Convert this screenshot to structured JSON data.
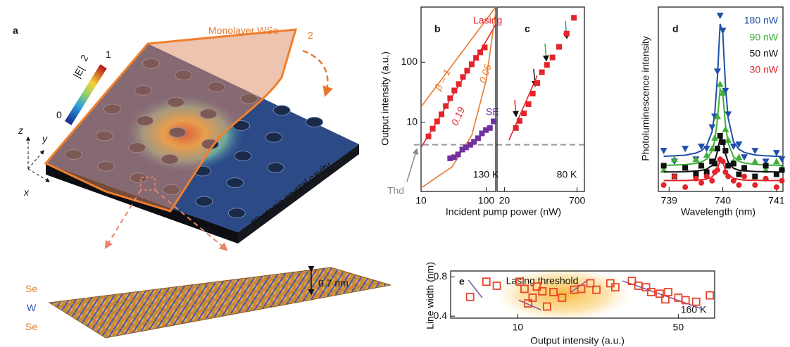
{
  "illustration": {
    "panel": "a",
    "layer_label": "Monolayer WSe",
    "layer_label_sub": "2",
    "colorbar": {
      "label": "|E|",
      "label_sup": "2",
      "ticks": [
        0,
        1
      ]
    },
    "axes": [
      "z",
      "y",
      "x"
    ],
    "cavity_label": "Photonic crystal cavity",
    "atoms": [
      "Se",
      "W",
      "Se"
    ],
    "thickness": "0.7 nm"
  },
  "chart_data": [
    {
      "type": "scatter",
      "panel": "b",
      "xlabel": "Incident pump power (nW)",
      "ylabel": "Output intensity (a.u.)",
      "xscale": "log",
      "yscale": "log",
      "xlim": [
        10,
        140
      ],
      "ylim": [
        0.7,
        830
      ],
      "xticks": [
        10,
        100
      ],
      "yticks": [
        10,
        100
      ],
      "temperature": "130 K",
      "series": [
        {
          "name": "Lasing",
          "color": "#e3242b",
          "marker": "square",
          "x": [
            13,
            15.1,
            17.6,
            20.6,
            24,
            28,
            32.5,
            38,
            44,
            51,
            60,
            70,
            81,
            95
          ],
          "values": [
            5.8,
            7.8,
            10.3,
            13.5,
            18.6,
            25.1,
            33.8,
            43.2,
            56.6,
            72.2,
            92.2,
            118,
            146,
            176
          ]
        },
        {
          "name": "SE",
          "color": "#7030a0",
          "marker": "square",
          "x": [
            28,
            32,
            37,
            43,
            49,
            57,
            65,
            75,
            86,
            99,
            114,
            130
          ],
          "values": [
            2.5,
            2.6,
            2.9,
            3.5,
            3.8,
            4.2,
            4.7,
            5.4,
            6.5,
            7.4,
            8.0,
            10.3
          ]
        }
      ],
      "fits": [
        {
          "label": "β = 1",
          "color": "#e8772e",
          "x": [
            10,
            140
          ],
          "values": [
            18,
            830
          ]
        },
        {
          "label": "0.19",
          "color": "#e3242b",
          "x": [
            10,
            20,
            40,
            80,
            140
          ],
          "values": [
            3.8,
            13,
            45,
            150,
            420
          ]
        },
        {
          "label": "0.05",
          "color": "#e8772e",
          "x": [
            10,
            30,
            60,
            100,
            140
          ],
          "values": [
            0.8,
            1.8,
            6,
            50,
            700
          ]
        }
      ],
      "threshold": {
        "label": "Thd",
        "value": 4.2
      }
    },
    {
      "type": "scatter",
      "panel": "c",
      "xscale": "log",
      "yscale": "log",
      "xlim": [
        14,
        1000
      ],
      "ylim": [
        0.7,
        830
      ],
      "xticks": [
        20,
        700
      ],
      "temperature": "80 K",
      "series": [
        {
          "color": "#e3242b",
          "marker": "square",
          "x": [
            35,
            42,
            52,
            65,
            80,
            100,
            125,
            160,
            210,
            290,
            420,
            600
          ],
          "values": [
            8,
            10.5,
            14,
            20,
            30,
            45,
            68,
            90,
            120,
            180,
            300,
            550
          ]
        }
      ],
      "fits": [
        {
          "color": "#e3242b",
          "x": [
            25,
            100
          ],
          "values": [
            5,
            60
          ]
        }
      ]
    },
    {
      "type": "scatter",
      "panel": "d",
      "xlabel": "Wavelength (nm)",
      "ylabel": "Photoluminescence intensity",
      "xlim": [
        738.8,
        741.12
      ],
      "ylim": [
        0.1,
        0.96
      ],
      "xticks": [
        739,
        740,
        741
      ],
      "x": [
        738.9,
        739.1,
        739.3,
        739.5,
        739.6,
        739.7,
        739.8,
        739.85,
        739.9,
        739.95,
        740.0,
        740.05,
        740.1,
        740.2,
        740.3,
        740.4,
        740.6,
        740.8,
        741.0,
        741.1
      ],
      "series": [
        {
          "name": "180 nW",
          "color": "#1f4fa8",
          "marker": "triangle-down",
          "values": [
            0.29,
            0.24,
            0.3,
            0.25,
            0.31,
            0.3,
            0.4,
            0.45,
            0.66,
            0.92,
            0.85,
            0.57,
            0.46,
            0.31,
            0.32,
            0.26,
            0.29,
            0.24,
            0.28,
            0.25
          ],
          "fit": [
            0.264,
            0.266,
            0.269,
            0.279,
            0.29,
            0.313,
            0.379,
            0.463,
            0.634,
            0.881,
            0.839,
            0.59,
            0.442,
            0.331,
            0.297,
            0.282,
            0.27,
            0.266,
            0.264,
            0.263
          ]
        },
        {
          "name": "90 nW",
          "color": "#3fae3a",
          "marker": "triangle-up",
          "values": [
            0.2,
            0.25,
            0.21,
            0.25,
            0.22,
            0.27,
            0.3,
            0.35,
            0.45,
            0.6,
            0.56,
            0.39,
            0.34,
            0.24,
            0.26,
            0.21,
            0.24,
            0.2,
            0.24,
            0.21
          ],
          "fit": [
            0.222,
            0.223,
            0.225,
            0.231,
            0.237,
            0.251,
            0.289,
            0.337,
            0.435,
            0.578,
            0.553,
            0.41,
            0.325,
            0.261,
            0.241,
            0.233,
            0.226,
            0.223,
            0.222,
            0.222
          ]
        },
        {
          "name": "50 nW",
          "color": "#111111",
          "marker": "square",
          "values": [
            0.22,
            0.17,
            0.21,
            0.18,
            0.22,
            0.19,
            0.24,
            0.23,
            0.3,
            0.36,
            0.33,
            0.29,
            0.22,
            0.23,
            0.18,
            0.21,
            0.17,
            0.22,
            0.18,
            0.2
          ],
          "fit": [
            0.191,
            0.191,
            0.192,
            0.195,
            0.198,
            0.204,
            0.221,
            0.242,
            0.286,
            0.35,
            0.339,
            0.275,
            0.237,
            0.208,
            0.199,
            0.196,
            0.193,
            0.192,
            0.191,
            0.191
          ]
        },
        {
          "name": "30 nW",
          "color": "#e3242b",
          "marker": "circle",
          "values": [
            0.13,
            0.17,
            0.12,
            0.16,
            0.14,
            0.17,
            0.15,
            0.19,
            0.2,
            0.25,
            0.24,
            0.19,
            0.17,
            0.15,
            0.13,
            0.17,
            0.13,
            0.16,
            0.12,
            0.15
          ],
          "fit": [
            0.151,
            0.151,
            0.151,
            0.153,
            0.154,
            0.158,
            0.168,
            0.181,
            0.207,
            0.244,
            0.238,
            0.2,
            0.178,
            0.161,
            0.156,
            0.153,
            0.152,
            0.151,
            0.151,
            0.151
          ]
        }
      ]
    },
    {
      "type": "scatter",
      "panel": "e",
      "xlabel": "Output intensity (a.u.)",
      "ylabel": "Line width (nm)",
      "xscale": "log",
      "xlim": [
        5.1,
        72
      ],
      "ylim": [
        0.38,
        0.86
      ],
      "xticks": [
        10,
        50
      ],
      "yticks": [
        0.4,
        0.8
      ],
      "annotation": "Lasing threshold",
      "temperature": "160 K",
      "series": [
        {
          "color": "#e8452a",
          "marker": "open-square",
          "x": [
            6.2,
            7.3,
            8.1,
            10.2,
            10.7,
            11.1,
            11.6,
            12.1,
            12.8,
            13.4,
            14.3,
            15.6,
            17.6,
            18.9,
            20.7,
            22.0,
            25.3,
            26.6,
            31.4,
            33.5,
            36.2,
            38.1,
            41.5,
            43.9,
            45.2,
            50,
            53.8,
            59.8,
            68.6
          ],
          "values": [
            0.596,
            0.751,
            0.71,
            0.751,
            0.678,
            0.53,
            0.588,
            0.702,
            0.653,
            0.498,
            0.645,
            0.588,
            0.669,
            0.678,
            0.735,
            0.669,
            0.735,
            0.694,
            0.759,
            0.71,
            0.694,
            0.645,
            0.629,
            0.571,
            0.645,
            0.588,
            0.563,
            0.547,
            0.612
          ]
        }
      ],
      "fits": [
        {
          "color": "#7a5fa8",
          "x": [
            6.1,
            7.0
          ],
          "values": [
            0.767,
            0.588
          ]
        },
        {
          "color": "#7a5fa8",
          "x": [
            10.1,
            12.6
          ],
          "values": [
            0.563,
            0.465
          ]
        },
        {
          "color": "#7a5fa8",
          "x": [
            17.1,
            20.4
          ],
          "values": [
            0.645,
            0.776
          ]
        },
        {
          "color": "#7a5fa8",
          "x": [
            28.6,
            63.8
          ],
          "values": [
            0.759,
            0.473
          ]
        }
      ]
    }
  ]
}
